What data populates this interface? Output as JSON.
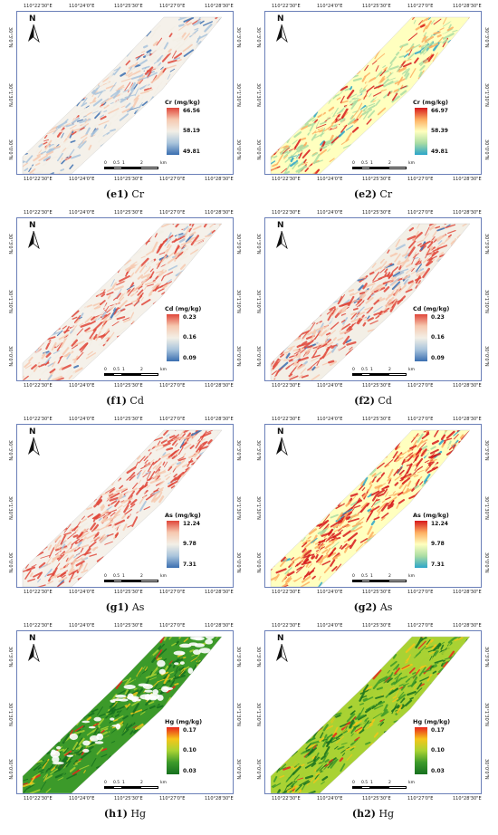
{
  "ticks": {
    "top": [
      "110°22'30\"E",
      "110°24'0\"E",
      "110°25'30\"E",
      "110°27'0\"E",
      "110°28'30\"E"
    ],
    "bottom": [
      "110°22'30\"E",
      "110°24'0\"E",
      "110°25'30\"E",
      "110°27'0\"E",
      "110°28'30\"E"
    ],
    "left": [
      "30°3'0\"N",
      "30°1'30\"N",
      "30°0'0\"N"
    ],
    "right": [
      "30°3'0\"N",
      "30°1'30\"N",
      "30°0'0\"N"
    ]
  },
  "north_label": "N",
  "scale_labels": [
    "0",
    "0.5",
    "1",
    "2",
    "km"
  ],
  "panels": [
    {
      "id": "e1",
      "caption_bold": "(e1)",
      "caption_elem": " Cr",
      "legend_title": "Cr (mg/kg)",
      "max": "66.56",
      "mid": "58.19",
      "min": "49.81",
      "scheme": "rdbu"
    },
    {
      "id": "e2",
      "caption_bold": "(e2)",
      "caption_elem": " Cr",
      "legend_title": "Cr (mg/kg)",
      "max": "66.97",
      "mid": "58.39",
      "min": "49.81",
      "scheme": "spectral"
    },
    {
      "id": "f1",
      "caption_bold": "(f1)",
      "caption_elem": " Cd",
      "legend_title": "Cd (mg/kg)",
      "max": "0.23",
      "mid": "0.16",
      "min": "0.09",
      "scheme": "rdbu"
    },
    {
      "id": "f2",
      "caption_bold": "(f2)",
      "caption_elem": " Cd",
      "legend_title": "Cd (mg/kg)",
      "max": "0.23",
      "mid": "0.16",
      "min": "0.09",
      "scheme": "rdbu"
    },
    {
      "id": "g1",
      "caption_bold": "(g1)",
      "caption_elem": " As",
      "legend_title": "As (mg/kg)",
      "max": "12.24",
      "mid": "9.78",
      "min": "7.31",
      "scheme": "rdbu"
    },
    {
      "id": "g2",
      "caption_bold": "(g2)",
      "caption_elem": " As",
      "legend_title": "As (mg/kg)",
      "max": "12.24",
      "mid": "9.78",
      "min": "7.31",
      "scheme": "spectral"
    },
    {
      "id": "h1",
      "caption_bold": "(h1)",
      "caption_elem": " Hg",
      "legend_title": "Hg (mg/kg)",
      "max": "0.17",
      "mid": "0.10",
      "min": "0.03",
      "scheme": "ryg"
    },
    {
      "id": "h2",
      "caption_bold": "(h2)",
      "caption_elem": " Hg",
      "legend_title": "Hg (mg/kg)",
      "max": "0.17",
      "mid": "0.10",
      "min": "0.03",
      "scheme": "ryg"
    }
  ],
  "colors": {
    "frame": "#6a7fb8",
    "rdbu": [
      "#e0473a",
      "#f6c9b0",
      "#f3efe6",
      "#a9c4dc",
      "#3a6eb0"
    ],
    "spectral": [
      "#d7191c",
      "#fdae61",
      "#ffffbf",
      "#abdda4",
      "#2ba5c9"
    ],
    "ryg": [
      "#e8261c",
      "#f6c51a",
      "#a9d233",
      "#3c9a2a",
      "#16701f"
    ]
  }
}
